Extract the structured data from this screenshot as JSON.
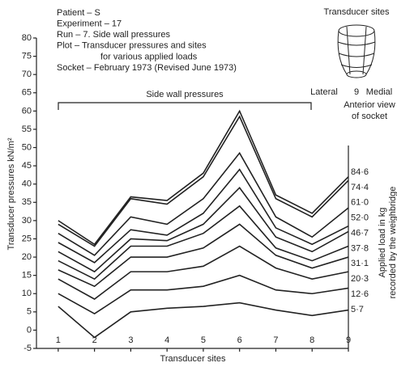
{
  "chart_data": {
    "type": "line",
    "annotations": [
      "Patient  – S",
      "Experiment  – 17",
      "Run  – 7. Side wall pressures",
      "Plot  – Transducer pressures and sites",
      "for various applied loads",
      "Socket  – February 1973 (Revised June 1973)"
    ],
    "bracket_label": "Side wall pressures",
    "y_label": "Transducer pressures kN/m²",
    "x_label": "Transducer sites",
    "legend_title": [
      "Applied load in kg",
      "recorded by the weighbridge"
    ],
    "inset": {
      "title": "Transducer sites",
      "left": "Lateral",
      "middle": "9",
      "right": "Medial",
      "caption": [
        "Anterior view",
        "of socket"
      ]
    },
    "x": [
      1,
      2,
      3,
      4,
      5,
      6,
      7,
      8,
      9
    ],
    "xlim": [
      0.4,
      9
    ],
    "xticks": [
      1,
      2,
      3,
      4,
      5,
      6,
      7,
      8,
      9
    ],
    "ylim": [
      -5,
      80
    ],
    "yticks": [
      -5,
      0,
      5,
      10,
      15,
      20,
      25,
      30,
      35,
      40,
      45,
      50,
      55,
      60,
      65,
      70,
      75,
      80
    ],
    "series": [
      {
        "name": "84·6",
        "color": "#222",
        "values": [
          30,
          23.5,
          36.5,
          35.5,
          43,
          60,
          37,
          32,
          42
        ]
      },
      {
        "name": "74·4",
        "color": "#222",
        "values": [
          29,
          23,
          36,
          34.5,
          42,
          58.5,
          36,
          31,
          41
        ]
      },
      {
        "name": "61·0",
        "color": "#222",
        "values": [
          26.5,
          20.5,
          31,
          29,
          36,
          48.5,
          31,
          25.5,
          33.5
        ]
      },
      {
        "name": "52·0",
        "color": "#222",
        "values": [
          24,
          18.5,
          27.5,
          26,
          32,
          44,
          28,
          23.5,
          28.5
        ]
      },
      {
        "name": "46·7",
        "color": "#222",
        "values": [
          21.5,
          16,
          25,
          24.5,
          29,
          39,
          25.5,
          21.5,
          27
        ]
      },
      {
        "name": "37·8",
        "color": "#222",
        "values": [
          19,
          14,
          23,
          23,
          26.5,
          34,
          22.5,
          19,
          23
        ]
      },
      {
        "name": "31·1",
        "color": "#222",
        "values": [
          16.5,
          12,
          20,
          20,
          22.5,
          29,
          20.5,
          17,
          20
        ]
      },
      {
        "name": "20·3",
        "color": "#222",
        "values": [
          14,
          8.5,
          16,
          16,
          17.5,
          23,
          17,
          14,
          16
        ]
      },
      {
        "name": "12·6",
        "color": "#222",
        "values": [
          10,
          4.5,
          11,
          11,
          12,
          15,
          11,
          10,
          11.5
        ]
      },
      {
        "name": "5·7",
        "color": "#222",
        "values": [
          6.5,
          -2,
          5,
          6,
          6.5,
          7.5,
          5.5,
          4,
          5.5
        ]
      }
    ]
  }
}
